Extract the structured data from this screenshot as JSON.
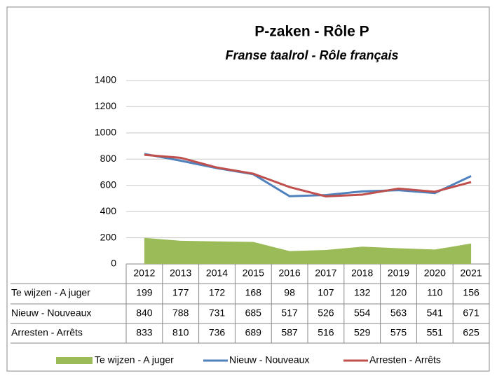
{
  "chart_data": {
    "type": "line",
    "title": "P-zaken - Rôle P",
    "subtitle": "Franse taalrol - Rôle français",
    "categories": [
      "2012",
      "2013",
      "2014",
      "2015",
      "2016",
      "2017",
      "2018",
      "2019",
      "2020",
      "2021"
    ],
    "series": [
      {
        "name": "Te wijzen - A juger",
        "type": "area",
        "color": "#9bbb59",
        "values": [
          199,
          177,
          172,
          168,
          98,
          107,
          132,
          120,
          110,
          156
        ]
      },
      {
        "name": "Nieuw - Nouveaux",
        "type": "line",
        "color": "#4f81bd",
        "values": [
          840,
          788,
          731,
          685,
          517,
          526,
          554,
          563,
          541,
          671
        ]
      },
      {
        "name": "Arresten - Arrêts",
        "type": "line",
        "color": "#c0504d",
        "values": [
          833,
          810,
          736,
          689,
          587,
          516,
          529,
          575,
          551,
          625
        ]
      }
    ],
    "ylim": [
      0,
      1400
    ],
    "yticks": [
      0,
      200,
      400,
      600,
      800,
      1000,
      1200,
      1400
    ],
    "grid": true,
    "legend": "bottom"
  }
}
